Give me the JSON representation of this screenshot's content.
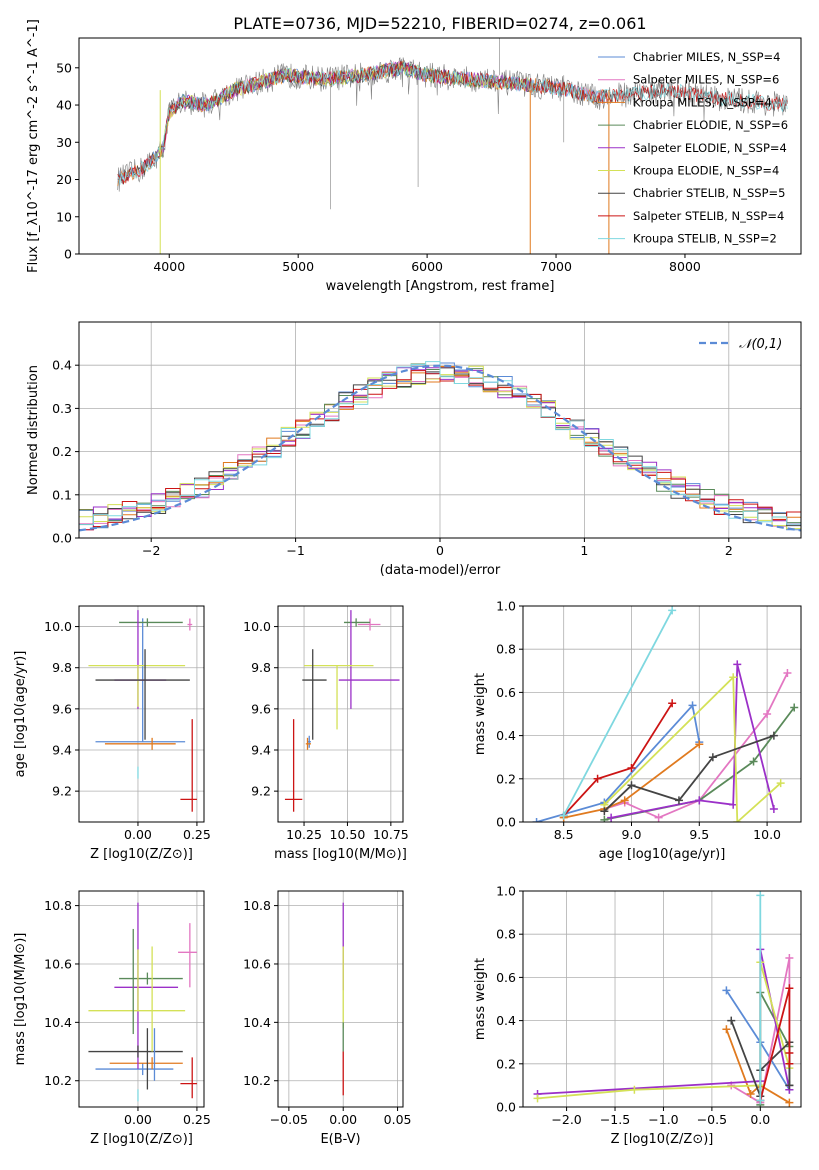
{
  "title": "PLATE=0736, MJD=52210, FIBERID=0274, z=0.061",
  "chart_data": [
    {
      "id": "spectrum",
      "type": "line",
      "title": "PLATE=0736, MJD=52210, FIBERID=0274, z=0.061",
      "xlabel": "wavelength [Angstrom, rest frame]",
      "ylabel": "Flux [f_λ10^-17 erg cm^-2 s^-1 A^-1]",
      "xlim": [
        3300,
        8900
      ],
      "ylim": [
        0,
        58
      ],
      "xticks": [
        4000,
        5000,
        6000,
        7000,
        8000
      ],
      "yticks": [
        0,
        10,
        20,
        30,
        40,
        50
      ],
      "grid": false,
      "legend_position": "top-right",
      "series": [
        {
          "name": "Chabrier MILES, N_SSP=4",
          "color": "#5b8bd6",
          "range": [
            3600,
            7400
          ]
        },
        {
          "name": "Salpeter MILES, N_SSP=6",
          "color": "#e377c2",
          "range": [
            3600,
            7400
          ]
        },
        {
          "name": "Kroupa MILES, N_SSP=4",
          "color": "#e07a1f",
          "range": [
            3600,
            7400
          ]
        },
        {
          "name": "Chabrier ELODIE, N_SSP=6",
          "color": "#5a8a5a",
          "range": [
            3900,
            6800
          ]
        },
        {
          "name": "Salpeter ELODIE, N_SSP=4",
          "color": "#9b30c8",
          "range": [
            3900,
            6800
          ]
        },
        {
          "name": "Kroupa ELODIE, N_SSP=4",
          "color": "#d4e157",
          "range": [
            3900,
            6800
          ]
        },
        {
          "name": "Chabrier STELIB, N_SSP=5",
          "color": "#444444",
          "range": [
            3600,
            8800
          ]
        },
        {
          "name": "Salpeter STELIB, N_SSP=4",
          "color": "#cc1414",
          "range": [
            3600,
            8800
          ]
        },
        {
          "name": "Kroupa STELIB, N_SSP=2",
          "color": "#7fd8e0",
          "range": [
            3600,
            8800
          ]
        }
      ],
      "continuum_anchors": {
        "x": [
          3600,
          3800,
          3950,
          4000,
          4100,
          4300,
          4500,
          4700,
          4900,
          5200,
          5500,
          5800,
          6000,
          6300,
          6600,
          6900,
          7100,
          7300,
          7600,
          7900,
          8200,
          8500,
          8800
        ],
        "y": [
          20,
          23,
          28,
          38,
          41,
          40,
          44,
          46,
          48,
          47,
          48,
          50,
          48,
          47,
          46,
          45,
          44,
          42,
          43,
          44,
          42,
          41,
          40
        ]
      },
      "data_line_color": "#808080"
    },
    {
      "id": "residuals",
      "type": "step",
      "xlabel": "(data-model)/error",
      "ylabel": "Normed distribution",
      "xlim": [
        -2.5,
        2.5
      ],
      "ylim": [
        0,
        0.5
      ],
      "xticks": [
        -2,
        -1,
        0,
        1,
        2
      ],
      "yticks": [
        0.0,
        0.1,
        0.2,
        0.3,
        0.4
      ],
      "grid": true,
      "legend_position": "top-right",
      "reference": {
        "name": "𝒩(0,1)",
        "color": "#5b8bd6",
        "style": "dashed",
        "mean": 0,
        "sigma": 1
      },
      "bin_width": 0.1,
      "series_colors": [
        "#5b8bd6",
        "#e377c2",
        "#e07a1f",
        "#5a8a5a",
        "#9b30c8",
        "#d4e157",
        "#444444",
        "#cc1414",
        "#7fd8e0"
      ]
    },
    {
      "id": "age_vs_Z",
      "type": "errorbar",
      "xlabel": "Z [log10(Z/Z⊙)]",
      "ylabel": "age [log10(age/yr)]",
      "xlim": [
        -0.25,
        0.28
      ],
      "ylim": [
        9.05,
        10.1
      ],
      "xticks": [
        0.0,
        0.25
      ],
      "yticks": [
        9.2,
        9.4,
        9.6,
        9.8,
        10.0
      ],
      "grid": true,
      "points": [
        {
          "x": 0.02,
          "y": 9.44,
          "xerr": [
            0.2,
            0.18
          ],
          "yerr": [
            0.0,
            0.6
          ],
          "color": "#5b8bd6"
        },
        {
          "x": 0.22,
          "y": 10.01,
          "xerr": [
            0.01,
            0.01
          ],
          "yerr": [
            0.0,
            0.0
          ],
          "color": "#e377c2"
        },
        {
          "x": 0.06,
          "y": 9.43,
          "xerr": [
            0.2,
            0.1
          ],
          "yerr": [
            0.0,
            0.0
          ],
          "color": "#e07a1f"
        },
        {
          "x": 0.04,
          "y": 10.02,
          "xerr": [
            0.12,
            0.15
          ],
          "yerr": [
            0.02,
            0.02
          ],
          "color": "#5a8a5a"
        },
        {
          "x": 0.0,
          "y": 9.74,
          "xerr": [
            0.1,
            0.12
          ],
          "yerr": [
            0.14,
            0.34
          ],
          "color": "#9b30c8"
        },
        {
          "x": 0.0,
          "y": 9.81,
          "xerr": [
            0.21,
            0.2
          ],
          "yerr": [
            0.2,
            0.0
          ],
          "color": "#d4e157"
        },
        {
          "x": 0.03,
          "y": 9.74,
          "xerr": [
            0.21,
            0.19
          ],
          "yerr": [
            0.29,
            0.15
          ],
          "color": "#444444"
        },
        {
          "x": 0.23,
          "y": 9.16,
          "xerr": [
            0.05,
            0.02
          ],
          "yerr": [
            0.06,
            0.39
          ],
          "color": "#cc1414"
        },
        {
          "x": 0.0,
          "y": 9.29,
          "xerr": [
            0.0,
            0.0
          ],
          "yerr": [
            0.0,
            0.0
          ],
          "color": "#7fd8e0"
        }
      ]
    },
    {
      "id": "age_vs_mass",
      "type": "errorbar",
      "xlabel": "mass [log10(M/M⊙)]",
      "xlim": [
        10.1,
        10.82
      ],
      "ylim": [
        9.05,
        10.1
      ],
      "xticks": [
        10.25,
        10.5,
        10.75
      ],
      "yticks": [
        9.2,
        9.4,
        9.6,
        9.8,
        10.0
      ],
      "grid": true,
      "points": [
        {
          "x": 10.28,
          "y": 9.44,
          "xerr": [
            0.01,
            0.01
          ],
          "yerr": [
            0.0,
            0.0
          ],
          "color": "#5b8bd6"
        },
        {
          "x": 10.63,
          "y": 10.01,
          "xerr": [
            0.07,
            0.06
          ],
          "yerr": [
            0.0,
            0.0
          ],
          "color": "#e377c2"
        },
        {
          "x": 10.27,
          "y": 9.43,
          "xerr": [
            0.01,
            0.02
          ],
          "yerr": [
            0.0,
            0.0
          ],
          "color": "#e07a1f"
        },
        {
          "x": 10.55,
          "y": 10.02,
          "xerr": [
            0.07,
            0.08
          ],
          "yerr": [
            0.02,
            0.02
          ],
          "color": "#5a8a5a"
        },
        {
          "x": 10.52,
          "y": 9.74,
          "xerr": [
            0.07,
            0.28
          ],
          "yerr": [
            0.14,
            0.34
          ],
          "color": "#9b30c8"
        },
        {
          "x": 10.44,
          "y": 9.81,
          "xerr": [
            0.19,
            0.21
          ],
          "yerr": [
            0.31,
            0.0
          ],
          "color": "#d4e157"
        },
        {
          "x": 10.3,
          "y": 9.74,
          "xerr": [
            0.06,
            0.08
          ],
          "yerr": [
            0.29,
            0.15
          ],
          "color": "#444444"
        },
        {
          "x": 10.19,
          "y": 9.16,
          "xerr": [
            0.05,
            0.05
          ],
          "yerr": [
            0.06,
            0.39
          ],
          "color": "#cc1414"
        }
      ]
    },
    {
      "id": "weight_vs_age",
      "type": "line",
      "xlabel": "age [log10(age/yr)]",
      "ylabel": "mass weight",
      "xlim": [
        8.2,
        10.25
      ],
      "ylim": [
        0,
        1
      ],
      "xticks": [
        8.5,
        9.0,
        9.5,
        10.0
      ],
      "yticks": [
        0.0,
        0.2,
        0.4,
        0.6,
        0.8,
        1.0
      ],
      "grid": true,
      "series": [
        {
          "color": "#5b8bd6",
          "x": [
            8.3,
            8.8,
            9.45,
            9.5
          ],
          "y": [
            0.0,
            0.09,
            0.54,
            0.37
          ]
        },
        {
          "color": "#e377c2",
          "x": [
            8.8,
            8.95,
            9.2,
            9.5,
            10.0,
            10.15
          ],
          "y": [
            0.06,
            0.09,
            0.02,
            0.1,
            0.5,
            0.69
          ]
        },
        {
          "color": "#e07a1f",
          "x": [
            8.5,
            8.8,
            8.95,
            9.5
          ],
          "y": [
            0.02,
            0.06,
            0.1,
            0.36
          ]
        },
        {
          "color": "#5a8a5a",
          "x": [
            8.8,
            9.5,
            9.9,
            10.2
          ],
          "y": [
            0.01,
            0.1,
            0.28,
            0.53
          ]
        },
        {
          "color": "#9b30c8",
          "x": [
            8.85,
            9.5,
            9.75,
            9.78,
            10.05
          ],
          "y": [
            0.02,
            0.1,
            0.08,
            0.73,
            0.06
          ]
        },
        {
          "color": "#d4e157",
          "x": [
            8.8,
            9.75,
            9.78,
            10.1
          ],
          "y": [
            0.08,
            0.67,
            0.0,
            0.18
          ]
        },
        {
          "color": "#444444",
          "x": [
            8.8,
            9.0,
            9.35,
            9.6,
            10.05
          ],
          "y": [
            0.05,
            0.17,
            0.1,
            0.3,
            0.4
          ]
        },
        {
          "color": "#cc1414",
          "x": [
            8.5,
            8.75,
            9.0,
            9.3
          ],
          "y": [
            0.03,
            0.2,
            0.25,
            0.55
          ]
        },
        {
          "color": "#7fd8e0",
          "x": [
            8.5,
            9.3
          ],
          "y": [
            0.03,
            0.98
          ]
        }
      ]
    },
    {
      "id": "mass_vs_Z",
      "type": "errorbar",
      "xlabel": "Z [log10(Z/Z⊙)]",
      "ylabel": "mass [log10(M/M⊙)]",
      "xlim": [
        -0.25,
        0.28
      ],
      "ylim": [
        10.11,
        10.85
      ],
      "xticks": [
        0.0,
        0.25
      ],
      "yticks": [
        10.2,
        10.4,
        10.6,
        10.8
      ],
      "grid": true,
      "points": [
        {
          "x": 0.02,
          "y": 10.24,
          "xerr": [
            0.2,
            0.13
          ],
          "yerr": [
            0.0,
            0.0
          ],
          "color": "#5b8bd6"
        },
        {
          "x": 0.22,
          "y": 10.64,
          "xerr": [
            0.05,
            0.03
          ],
          "yerr": [
            0.12,
            0.1
          ],
          "color": "#e377c2"
        },
        {
          "x": 0.06,
          "y": 10.26,
          "xerr": [
            0.18,
            0.13
          ],
          "yerr": [
            0.0,
            0.0
          ],
          "color": "#e07a1f"
        },
        {
          "x": 0.04,
          "y": 10.55,
          "xerr": [
            0.12,
            0.15
          ],
          "yerr": [
            0.0,
            0.0
          ],
          "color": "#5a8a5a"
        },
        {
          "x": 0.0,
          "y": 10.52,
          "xerr": [
            0.1,
            0.17
          ],
          "yerr": [
            0.28,
            0.29
          ],
          "color": "#9b30c8"
        },
        {
          "x": 0.0,
          "y": 10.44,
          "xerr": [
            0.21,
            0.2
          ],
          "yerr": [
            0.0,
            0.21
          ],
          "color": "#d4e157"
        },
        {
          "x": 0.0,
          "y": 10.3,
          "xerr": [
            0.21,
            0.19
          ],
          "yerr": [
            0.0,
            0.0
          ],
          "color": "#444444"
        },
        {
          "x": 0.23,
          "y": 10.19,
          "xerr": [
            0.05,
            0.02
          ],
          "yerr": [
            0.05,
            0.09
          ],
          "color": "#cc1414"
        },
        {
          "x": 0.0,
          "y": 10.15,
          "xerr": [
            0.0,
            0.0
          ],
          "yerr": [
            0.0,
            0.0
          ],
          "color": "#7fd8e0"
        }
      ],
      "vlines": [
        {
          "x": -0.02,
          "y": [
            10.36,
            10.72
          ],
          "color": "#5a8a5a"
        },
        {
          "x": 0.04,
          "y": [
            10.17,
            10.38
          ],
          "color": "#444444"
        },
        {
          "x": 0.07,
          "y": [
            10.2,
            10.38
          ],
          "color": "#5b8bd6"
        },
        {
          "x": 0.06,
          "y": [
            10.3,
            10.66
          ],
          "color": "#d4e157"
        }
      ]
    },
    {
      "id": "mass_vs_EBV",
      "type": "errorbar",
      "xlabel": "E(B-V)",
      "xlim": [
        -0.06,
        0.055
      ],
      "ylim": [
        10.11,
        10.85
      ],
      "xticks": [
        -0.05,
        0.0,
        0.05
      ],
      "yticks": [
        10.2,
        10.4,
        10.6,
        10.8
      ],
      "grid": true,
      "vlines": [
        {
          "x": 0.0,
          "y": [
            10.51,
            10.81
          ],
          "color": "#9b30c8"
        },
        {
          "x": 0.0,
          "y": [
            10.38,
            10.66
          ],
          "color": "#d4e157"
        },
        {
          "x": 0.0,
          "y": [
            10.3,
            10.4
          ],
          "color": "#5a8a5a"
        },
        {
          "x": 0.0,
          "y": [
            10.15,
            10.3
          ],
          "color": "#cc1414"
        }
      ]
    },
    {
      "id": "weight_vs_Z",
      "type": "line",
      "xlabel": "Z [log10(Z/Z⊙)]",
      "ylabel": "mass weight",
      "xlim": [
        -2.45,
        0.42
      ],
      "ylim": [
        0,
        1
      ],
      "xticks": [
        -2.0,
        -1.5,
        -1.0,
        -0.5,
        0.0
      ],
      "yticks": [
        0.0,
        0.2,
        0.4,
        0.6,
        0.8,
        1.0
      ],
      "grid": true,
      "series": [
        {
          "color": "#5b8bd6",
          "x": [
            -0.35,
            0.0,
            0.3
          ],
          "y": [
            0.54,
            0.3,
            0.08
          ]
        },
        {
          "color": "#e377c2",
          "x": [
            -0.3,
            0.0,
            0.3,
            0.3
          ],
          "y": [
            0.1,
            0.02,
            0.69,
            0.1
          ]
        },
        {
          "color": "#e07a1f",
          "x": [
            -0.35,
            -0.1,
            0.0,
            0.3
          ],
          "y": [
            0.36,
            0.06,
            0.1,
            0.02
          ]
        },
        {
          "color": "#5a8a5a",
          "x": [
            0.0,
            0.0,
            0.3,
            0.3
          ],
          "y": [
            0.01,
            0.53,
            0.28,
            0.1
          ]
        },
        {
          "color": "#9b30c8",
          "x": [
            -2.3,
            0.0,
            0.0,
            0.3
          ],
          "y": [
            0.06,
            0.12,
            0.73,
            0.08
          ]
        },
        {
          "color": "#d4e157",
          "x": [
            -2.3,
            -1.3,
            0.0,
            0.0,
            0.3
          ],
          "y": [
            0.04,
            0.08,
            0.1,
            0.67,
            0.18
          ]
        },
        {
          "color": "#444444",
          "x": [
            -0.3,
            0.0,
            0.0,
            0.3,
            0.3
          ],
          "y": [
            0.4,
            0.05,
            0.17,
            0.3,
            0.1
          ]
        },
        {
          "color": "#cc1414",
          "x": [
            0.0,
            0.3,
            0.3,
            0.3
          ],
          "y": [
            0.03,
            0.55,
            0.2,
            0.25
          ]
        },
        {
          "color": "#7fd8e0",
          "x": [
            0.0,
            0.0
          ],
          "y": [
            0.03,
            0.98
          ]
        }
      ]
    }
  ]
}
